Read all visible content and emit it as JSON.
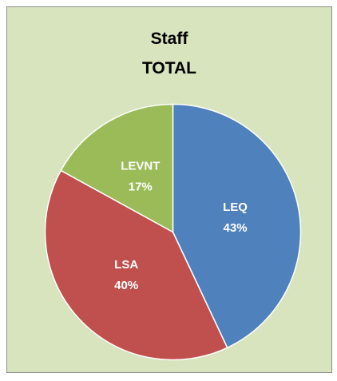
{
  "chart_data": {
    "type": "pie",
    "title": "Staff\nTOTAL",
    "categories": [
      "LEQ",
      "LSA",
      "LEVNT"
    ],
    "values": [
      43,
      40,
      17
    ],
    "value_labels": [
      "43%",
      "40%",
      "17%"
    ],
    "colors": [
      "#4f81bd",
      "#c0504d",
      "#9bbb59"
    ]
  }
}
